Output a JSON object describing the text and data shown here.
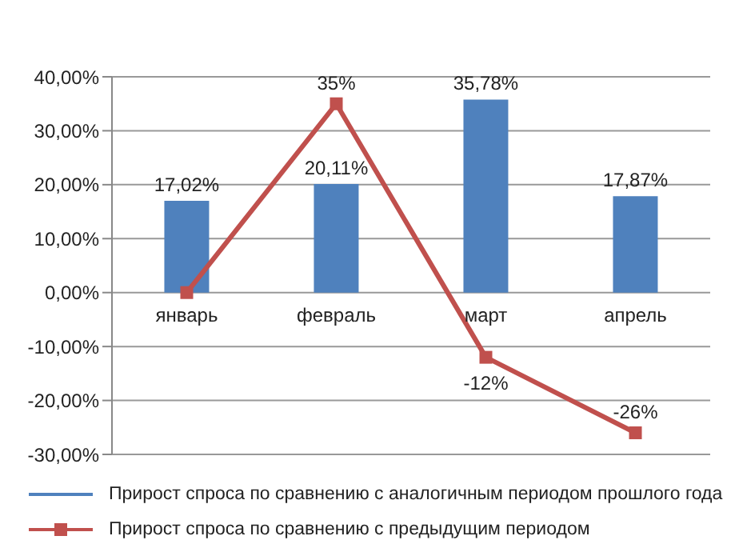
{
  "chart_data": {
    "type": "bar",
    "categories": [
      "январь",
      "февраль",
      "март",
      "апрель"
    ],
    "series": [
      {
        "name": "Прирост спроса по сравнению с аналогичным периодом прошлого года",
        "color": "#4f81bd",
        "values": [
          17.02,
          20.11,
          35.78,
          17.87
        ],
        "value_labels": [
          "17,02%",
          "20,11%",
          "35,78%",
          "17,87%"
        ]
      },
      {
        "name": "Прирост спроса по сравнению с предыдущим периодом",
        "type": "line",
        "color": "#c0504d",
        "marker": "square",
        "values": [
          0,
          35,
          -12,
          -26
        ],
        "value_labels": [
          null,
          "35%",
          "-12%",
          "-26%"
        ]
      }
    ],
    "ylim": [
      -30,
      40
    ],
    "yticks": [
      {
        "value": -30,
        "label": "-30,00%"
      },
      {
        "value": -20,
        "label": "-20,00%"
      },
      {
        "value": -10,
        "label": "-10,00%"
      },
      {
        "value": 0,
        "label": "0,00%"
      },
      {
        "value": 10,
        "label": "10,00%"
      },
      {
        "value": 20,
        "label": "20,00%"
      },
      {
        "value": 30,
        "label": "30,00%"
      },
      {
        "value": 40,
        "label": "40,00%"
      }
    ],
    "grid": "y",
    "legend": "bottom"
  }
}
